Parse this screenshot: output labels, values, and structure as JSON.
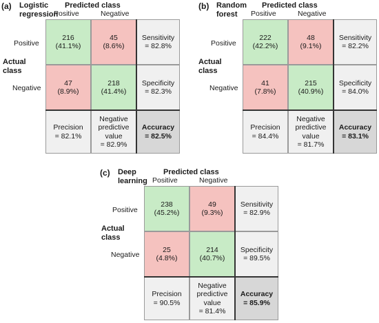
{
  "common": {
    "predicted_class": "Predicted class",
    "positive": "Positive",
    "negative": "Negative",
    "actual_class_line1": "Actual",
    "actual_class_line2": "class"
  },
  "panels": [
    {
      "id": "a",
      "label": "(a)",
      "model_line1": "Logistic",
      "model_line2": "regression",
      "tp": {
        "count": "216",
        "pct": "(41.1%)"
      },
      "fn": {
        "count": "45",
        "pct": "(8.6%)"
      },
      "fp": {
        "count": "47",
        "pct": "(8.9%)"
      },
      "tn": {
        "count": "218",
        "pct": "(41.4%)"
      },
      "sensitivity": {
        "label": "Sensitivity",
        "value": "= 82.8%"
      },
      "specificity": {
        "label": "Specificity",
        "value": "= 82.3%"
      },
      "precision": {
        "label": "Precision",
        "value": "= 82.1%"
      },
      "npv": {
        "line1": "Negative",
        "line2": "predictive",
        "line3": "value",
        "value": "= 82.9%"
      },
      "accuracy": {
        "label": "Accuracy",
        "value": "= 82.5%"
      }
    },
    {
      "id": "b",
      "label": "(b)",
      "model_line1": "Random",
      "model_line2": "forest",
      "tp": {
        "count": "222",
        "pct": "(42.2%)"
      },
      "fn": {
        "count": "48",
        "pct": "(9.1%)"
      },
      "fp": {
        "count": "41",
        "pct": "(7.8%)"
      },
      "tn": {
        "count": "215",
        "pct": "(40.9%)"
      },
      "sensitivity": {
        "label": "Sensitivity",
        "value": "= 82.2%"
      },
      "specificity": {
        "label": "Specificity",
        "value": "= 84.0%"
      },
      "precision": {
        "label": "Precision",
        "value": "= 84.4%"
      },
      "npv": {
        "line1": "Negative",
        "line2": "predictive",
        "line3": "value",
        "value": "= 81.7%"
      },
      "accuracy": {
        "label": "Accuracy",
        "value": "= 83.1%"
      }
    },
    {
      "id": "c",
      "label": "(c)",
      "model_line1": "Deep",
      "model_line2": "learning",
      "tp": {
        "count": "238",
        "pct": "(45.2%)"
      },
      "fn": {
        "count": "49",
        "pct": "(9.3%)"
      },
      "fp": {
        "count": "25",
        "pct": "(4.8%)"
      },
      "tn": {
        "count": "214",
        "pct": "(40.7%)"
      },
      "sensitivity": {
        "label": "Sensitivity",
        "value": "= 82.9%"
      },
      "specificity": {
        "label": "Specificity",
        "value": "= 89.5%"
      },
      "precision": {
        "label": "Precision",
        "value": "= 90.5%"
      },
      "npv": {
        "line1": "Negative",
        "line2": "predictive",
        "line3": "value",
        "value": "= 81.4%"
      },
      "accuracy": {
        "label": "Accuracy",
        "value": "= 85.9%"
      }
    }
  ],
  "colors": {
    "true_cell": "#c8ebc6",
    "false_cell": "#f5c2bf",
    "stat_cell": "#f0f0f0",
    "accuracy_cell": "#d7d7d7"
  }
}
